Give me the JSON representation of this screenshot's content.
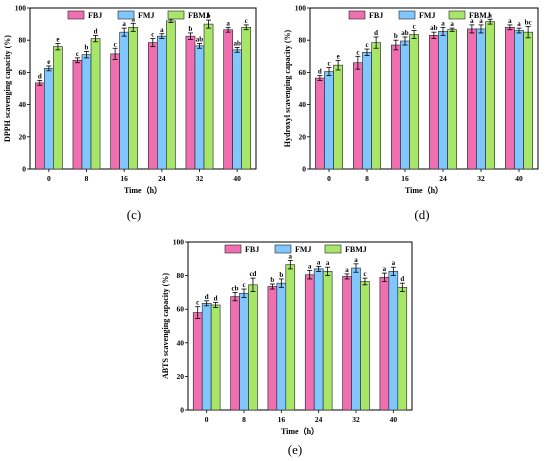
{
  "chart_data": [
    {
      "type": "bar",
      "panel_label": "(c)",
      "xlabel": "Time（h）",
      "ylabel": "DPPH scavenging capacity (%)",
      "ylim": [
        0,
        100
      ],
      "yticks": [
        0,
        20,
        40,
        60,
        80,
        100
      ],
      "categories": [
        "0",
        "8",
        "16",
        "24",
        "32",
        "40"
      ],
      "legend_position": "top",
      "series": [
        {
          "name": "FBJ",
          "color": "#f06fb0",
          "values": [
            53.5,
            67.5,
            71.5,
            78.5,
            82.5,
            86.5
          ],
          "errors": [
            1.5,
            1.5,
            3.5,
            2.5,
            2.0,
            1.5
          ],
          "letters": [
            "d",
            "c",
            "c",
            "c",
            "b",
            "a"
          ]
        },
        {
          "name": "FMJ",
          "color": "#80c7ff",
          "values": [
            62.5,
            71.0,
            85.0,
            82.5,
            76.5,
            74.0
          ],
          "errors": [
            1.5,
            2.0,
            2.5,
            1.5,
            1.5,
            1.5
          ],
          "letters": [
            "e",
            "b",
            "a",
            "a",
            "ab",
            "ab"
          ]
        },
        {
          "name": "FBMJ",
          "color": "#a8e66a",
          "values": [
            76.0,
            81.0,
            88.0,
            92.0,
            90.0,
            88.0
          ],
          "errors": [
            2.0,
            2.0,
            2.5,
            1.0,
            2.5,
            1.5
          ],
          "letters": [
            "e",
            "d",
            "a",
            "a",
            "b",
            "c"
          ]
        }
      ]
    },
    {
      "type": "bar",
      "panel_label": "(d)",
      "xlabel": "Time（h）",
      "ylabel": "Hydroxyl scavenging capacity (%)",
      "ylim": [
        0,
        100
      ],
      "yticks": [
        0,
        20,
        40,
        60,
        80,
        100
      ],
      "categories": [
        "0",
        "8",
        "16",
        "24",
        "32",
        "40"
      ],
      "legend_position": "top",
      "series": [
        {
          "name": "FBJ",
          "color": "#f06fb0",
          "values": [
            56.5,
            66.0,
            77.0,
            83.0,
            87.0,
            88.0
          ],
          "errors": [
            1.5,
            4.0,
            3.0,
            2.0,
            2.5,
            1.5
          ],
          "letters": [
            "d",
            "c",
            "b",
            "ab",
            "a",
            "a"
          ]
        },
        {
          "name": "FMJ",
          "color": "#80c7ff",
          "values": [
            60.5,
            72.5,
            79.5,
            85.5,
            87.0,
            86.0
          ],
          "errors": [
            2.5,
            2.0,
            2.5,
            2.5,
            2.5,
            1.5
          ],
          "letters": [
            "c",
            "c",
            "ab",
            "a",
            "a",
            "a"
          ]
        },
        {
          "name": "FBMJ",
          "color": "#a8e66a",
          "values": [
            64.5,
            78.5,
            83.5,
            86.5,
            91.5,
            85.0
          ],
          "errors": [
            3.0,
            3.5,
            2.5,
            1.0,
            1.5,
            3.5
          ],
          "letters": [
            "e",
            "d",
            "c",
            "a",
            "a",
            "bc"
          ]
        }
      ]
    },
    {
      "type": "bar",
      "panel_label": "(e)",
      "xlabel": "Time（h）",
      "ylabel": "ABTS scavenging capacity (%)",
      "ylim": [
        0,
        100
      ],
      "yticks": [
        0,
        20,
        40,
        60,
        80,
        100
      ],
      "categories": [
        "0",
        "8",
        "16",
        "24",
        "32",
        "40"
      ],
      "legend_position": "top",
      "series": [
        {
          "name": "FBJ",
          "color": "#f06fb0",
          "values": [
            58.0,
            67.5,
            73.5,
            80.5,
            79.5,
            79.0
          ],
          "errors": [
            3.5,
            2.5,
            1.5,
            2.5,
            1.5,
            2.5
          ],
          "letters": [
            "c",
            "cb",
            "b",
            "a",
            "a",
            "a"
          ]
        },
        {
          "name": "FMJ",
          "color": "#80c7ff",
          "values": [
            63.5,
            69.5,
            75.5,
            84.0,
            84.5,
            82.5
          ],
          "errors": [
            1.5,
            2.5,
            2.5,
            1.5,
            2.5,
            2.5
          ],
          "letters": [
            "d",
            "c",
            "b",
            "a",
            "a",
            "a"
          ]
        },
        {
          "name": "FBMJ",
          "color": "#a8e66a",
          "values": [
            62.5,
            74.5,
            86.5,
            82.5,
            76.5,
            73.0
          ],
          "errors": [
            1.5,
            4.0,
            2.5,
            2.5,
            2.0,
            2.5
          ],
          "letters": [
            "d",
            "cd",
            "a",
            "a",
            "c",
            "d"
          ]
        }
      ]
    }
  ]
}
